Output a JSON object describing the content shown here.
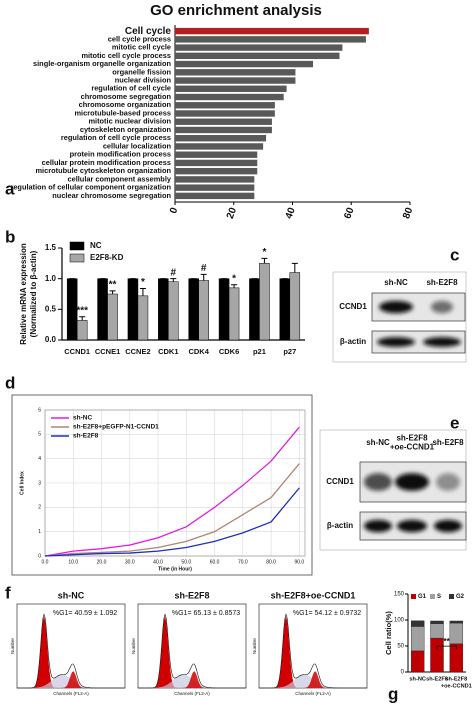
{
  "chart_data": [
    {
      "letter": "a",
      "type": "barh",
      "title": "GO enrichment analysis",
      "categories": [
        "Cell cycle",
        "cell cycle process",
        "mitotic cell cycle",
        "mitotic cell cycle process",
        "single-organism organelle organization",
        "organelle fission",
        "nuclear division",
        "regulation of cell cycle",
        "chromosome segregation",
        "chromosome organization",
        "microtubule-based process",
        "mitotic nuclear division",
        "cytoskeleton organization",
        "regulation of cell cycle process",
        "cellular localization",
        "protein modification process",
        "cellular protein modification process",
        "microtubule cytoskeleton organization",
        "cellular component assembly",
        "regulation of cellular component organization",
        "nuclear chromosome segregation"
      ],
      "values": [
        66,
        65,
        57,
        56,
        47,
        41,
        41,
        38,
        37,
        34,
        34,
        33,
        33,
        31,
        30,
        28,
        28,
        28,
        27,
        27,
        27
      ],
      "color": "#595959",
      "colors": [
        "#b41e1e",
        "#595959",
        "#595959",
        "#595959",
        "#595959",
        "#595959",
        "#595959",
        "#595959",
        "#595959",
        "#595959",
        "#595959",
        "#595959",
        "#595959",
        "#595959",
        "#595959",
        "#595959",
        "#595959",
        "#595959",
        "#595959",
        "#595959",
        "#595959"
      ],
      "xlim": [
        0,
        80
      ],
      "xticks": [
        0,
        20,
        40,
        60,
        80
      ]
    },
    {
      "letter": "b",
      "type": "bar",
      "y_label": [
        "Relative mRNA expression",
        "(Normalized to β-actin)"
      ],
      "categories": [
        "CCND1",
        "CCNE1",
        "CCNE2",
        "CDK1",
        "CDK4",
        "CDK6",
        "p21",
        "p27"
      ],
      "series": [
        {
          "name": "NC",
          "color": "#000000",
          "values": [
            1,
            1,
            1,
            1,
            1,
            1,
            1,
            1
          ],
          "errors": [
            0,
            0,
            0,
            0,
            0,
            0,
            0,
            0
          ]
        },
        {
          "name": "E2F8-KD",
          "color": "#a6a6a6",
          "values": [
            0.32,
            0.75,
            0.72,
            0.95,
            0.97,
            0.85,
            1.25,
            1.1
          ],
          "errors": [
            0.06,
            0.05,
            0.12,
            0.05,
            0.1,
            0.05,
            0.08,
            0.15
          ]
        }
      ],
      "annotations": [
        "***",
        "**",
        "*",
        "#",
        "#",
        "*",
        "*",
        null
      ],
      "ylim": [
        0,
        1.5
      ],
      "yticks": [
        {
          "value": 0,
          "label": "0.0"
        },
        {
          "value": 0.5,
          "label": "0.5"
        },
        {
          "value": 1,
          "label": "1.0"
        },
        {
          "value": 1.5,
          "label": "1.5"
        }
      ],
      "legend": "upper left"
    },
    {
      "letter": "d",
      "type": "line",
      "x_label": "Time (in Hour)",
      "y_label": "Cell Index",
      "x": [
        0,
        10,
        20,
        30,
        40,
        50,
        60,
        70,
        80,
        90
      ],
      "series": [
        {
          "name": "sh-NC",
          "color": "#e01ee0",
          "values": [
            0,
            0.2,
            0.3,
            0.45,
            0.75,
            1.2,
            2.0,
            2.9,
            3.9,
            5.3
          ]
        },
        {
          "name": "sh-E2F8+pEGFP-N1-CCND1",
          "color": "#b08575",
          "values": [
            0,
            0.1,
            0.15,
            0.2,
            0.35,
            0.6,
            1.0,
            1.7,
            2.4,
            3.8
          ]
        },
        {
          "name": "sh-E2F8",
          "color": "#1e2ec0",
          "values": [
            0,
            0.05,
            0.1,
            0.12,
            0.2,
            0.35,
            0.6,
            0.95,
            1.4,
            2.8
          ]
        }
      ],
      "xlim": [
        0,
        92
      ],
      "xticks": [
        {
          "value": 0,
          "label": "0.0"
        },
        {
          "value": 10,
          "label": "10.0"
        },
        {
          "value": 20,
          "label": "20.0"
        },
        {
          "value": 30,
          "label": "30.0"
        },
        {
          "value": 40,
          "label": "40.0"
        },
        {
          "value": 50,
          "label": "50.0"
        },
        {
          "value": 60,
          "label": "60.0"
        },
        {
          "value": 70,
          "label": "70.0"
        },
        {
          "value": 80,
          "label": "80.0"
        },
        {
          "value": 90,
          "label": "90.0"
        }
      ],
      "ylim": [
        0,
        6
      ],
      "yticks": [
        0,
        1,
        2,
        3,
        4,
        5,
        6
      ],
      "legend": "upper left"
    },
    {
      "letter": "g",
      "type": "stacked_bar",
      "y_label": "Cell ratio(%)",
      "categories": [
        [
          "sh-NC"
        ],
        [
          "sh-E2F8"
        ],
        [
          "sh-E2F8",
          "+oe-CCND1"
        ]
      ],
      "series": [
        {
          "name": "G1",
          "color": "#c00000",
          "values": [
            40.59,
            65.13,
            54.12
          ]
        },
        {
          "name": "S",
          "color": "#a0a0a0",
          "values": [
            47,
            28,
            40
          ]
        },
        {
          "name": "G2",
          "color": "#333333",
          "values": [
            11,
            5,
            4
          ]
        }
      ],
      "ylim": [
        0,
        150
      ],
      "yticks": [
        0,
        50,
        100,
        150
      ],
      "annotation": "**"
    }
  ],
  "blots": [
    {
      "letter": "c",
      "lanes": [
        [
          "sh-NC"
        ],
        [
          "sh-E2F8"
        ]
      ],
      "proteins": [
        "CCND1",
        "β-actin"
      ]
    },
    {
      "letter": "e",
      "lanes": [
        [
          "sh-NC"
        ],
        [
          "sh-E2F8",
          "+oe-CCND1"
        ],
        [
          "sh-E2F8"
        ]
      ],
      "proteins": [
        "CCND1",
        "β-actin"
      ]
    }
  ],
  "flow": {
    "letter": "f",
    "x_label": "Channels (FL2-A)",
    "y_label": "Number",
    "plots": [
      {
        "title": "sh-NC",
        "label": "%G1= 40.59 ± 1.092"
      },
      {
        "title": "sh-E2F8",
        "label": "%G1= 65.13 ± 0.8573"
      },
      {
        "title": "sh-E2F8+oe-CCND1",
        "label": "%G1= 54.12 ± 0.9732"
      }
    ]
  }
}
